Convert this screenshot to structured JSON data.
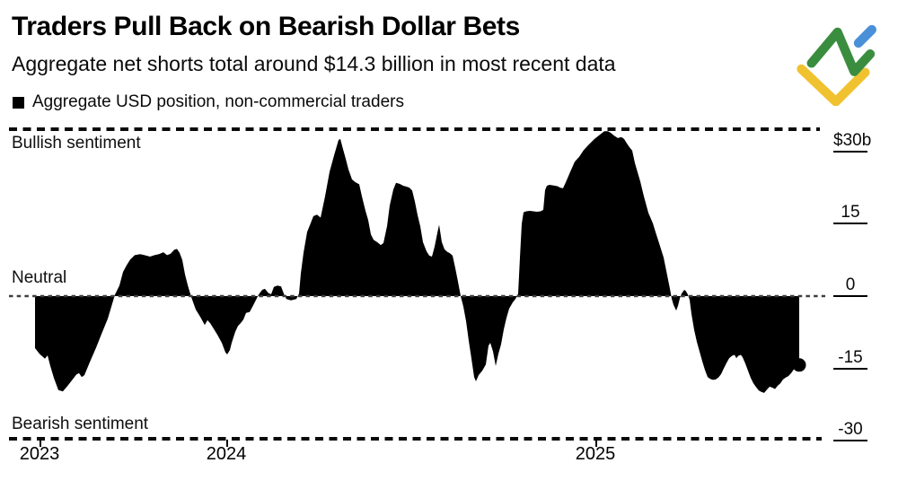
{
  "header": {
    "title": "Traders Pull Back on Bearish Dollar Bets",
    "subtitle": "Aggregate net shorts total around $14.3 billion in most recent data"
  },
  "legend": {
    "label": "Aggregate USD position, non-commercial traders",
    "swatch_color": "#000000"
  },
  "annotations": {
    "bullish": "Bullish sentiment",
    "neutral": "Neutral",
    "bearish": "Bearish sentiment"
  },
  "y_axis": {
    "labels": [
      {
        "text": "$30b",
        "value": 30
      },
      {
        "text": "15",
        "value": 15
      },
      {
        "text": "0",
        "value": 0
      },
      {
        "text": "-15",
        "value": -15
      },
      {
        "text": "-30",
        "value": -30
      }
    ]
  },
  "x_axis": {
    "ticks": [
      {
        "label": "2023",
        "x": 44
      },
      {
        "label": "2024",
        "x": 252
      },
      {
        "label": "2025",
        "x": 663
      }
    ]
  },
  "logo": {
    "name": "litefinance-mark",
    "colors": {
      "green": "#3a8d3e",
      "blue": "#4a90d8",
      "yellow": "#f0c230"
    }
  },
  "chart_data": {
    "type": "area",
    "series_name": "Aggregate USD position, non-commercial traders",
    "unit": "USD billions",
    "baseline": 0,
    "ylim": [
      -29.6,
      34.6
    ],
    "y_ticks": [
      30,
      15,
      0,
      -15,
      -30
    ],
    "x_tick_labels": [
      "2023",
      "2024",
      "2025"
    ],
    "grid": "dashed lines at plot top, zero baseline, and plot bottom only",
    "legend_position": "top-left",
    "fill_color": "#000000",
    "last_value": -14.3,
    "last_point_marker": "dot",
    "points_format": "[x_pixel_in_plot(10..905), value_billions]",
    "points": [
      [
        39,
        -10.8
      ],
      [
        44,
        -12.0
      ],
      [
        50,
        -13.0
      ],
      [
        53,
        -12.3
      ],
      [
        56,
        -14.5
      ],
      [
        60,
        -17.0
      ],
      [
        65,
        -19.5
      ],
      [
        70,
        -19.8
      ],
      [
        75,
        -18.7
      ],
      [
        80,
        -17.5
      ],
      [
        85,
        -16.3
      ],
      [
        88,
        -16.0
      ],
      [
        91,
        -16.8
      ],
      [
        94,
        -16.4
      ],
      [
        100,
        -13.7
      ],
      [
        107,
        -10.7
      ],
      [
        113,
        -7.9
      ],
      [
        120,
        -4.7
      ],
      [
        128,
        0.3
      ],
      [
        133,
        2.2
      ],
      [
        137,
        5.0
      ],
      [
        141,
        6.4
      ],
      [
        145,
        7.6
      ],
      [
        150,
        8.5
      ],
      [
        156,
        8.7
      ],
      [
        161,
        8.5
      ],
      [
        167,
        8.2
      ],
      [
        172,
        8.5
      ],
      [
        177,
        8.7
      ],
      [
        182,
        9.1
      ],
      [
        186,
        8.5
      ],
      [
        190,
        8.8
      ],
      [
        194,
        9.6
      ],
      [
        197,
        9.8
      ],
      [
        200,
        9.0
      ],
      [
        203,
        7.5
      ],
      [
        206,
        4.5
      ],
      [
        209,
        2.3
      ],
      [
        213,
        -0.2
      ],
      [
        218,
        -2.8
      ],
      [
        223,
        -4.3
      ],
      [
        228,
        -6.0
      ],
      [
        231,
        -5.0
      ],
      [
        234,
        -5.6
      ],
      [
        237,
        -6.5
      ],
      [
        242,
        -8.0
      ],
      [
        247,
        -9.7
      ],
      [
        251,
        -11.7
      ],
      [
        253,
        -12.1
      ],
      [
        256,
        -11.2
      ],
      [
        258,
        -9.7
      ],
      [
        262,
        -7.4
      ],
      [
        265,
        -6.2
      ],
      [
        268,
        -5.6
      ],
      [
        271,
        -4.9
      ],
      [
        274,
        -3.5
      ],
      [
        278,
        -3.3
      ],
      [
        282,
        -1.9
      ],
      [
        288,
        0.3
      ],
      [
        292,
        1.3
      ],
      [
        295,
        1.5
      ],
      [
        299,
        0.6
      ],
      [
        302,
        0.4
      ],
      [
        305,
        1.9
      ],
      [
        309,
        2.2
      ],
      [
        313,
        2.0
      ],
      [
        316,
        0.5
      ],
      [
        319,
        -0.6
      ],
      [
        324,
        -0.9
      ],
      [
        330,
        -0.6
      ],
      [
        333,
        0.5
      ],
      [
        335,
        4.7
      ],
      [
        338,
        9.0
      ],
      [
        342,
        13.3
      ],
      [
        345,
        14.7
      ],
      [
        349,
        16.6
      ],
      [
        353,
        16.9
      ],
      [
        357,
        16.3
      ],
      [
        362,
        20.7
      ],
      [
        367,
        25.8
      ],
      [
        372,
        29.2
      ],
      [
        377,
        32.4
      ],
      [
        379,
        32.6
      ],
      [
        382,
        30.5
      ],
      [
        385,
        28.5
      ],
      [
        388,
        26.3
      ],
      [
        392,
        24.2
      ],
      [
        396,
        23.6
      ],
      [
        400,
        23.2
      ],
      [
        403,
        20.7
      ],
      [
        407,
        17.7
      ],
      [
        410,
        15.8
      ],
      [
        413,
        12.8
      ],
      [
        416,
        11.7
      ],
      [
        420,
        11.2
      ],
      [
        424,
        10.6
      ],
      [
        427,
        11.0
      ],
      [
        431,
        14.5
      ],
      [
        434,
        18.8
      ],
      [
        438,
        22.1
      ],
      [
        441,
        23.5
      ],
      [
        445,
        23.3
      ],
      [
        449,
        22.9
      ],
      [
        453,
        22.7
      ],
      [
        456,
        22.5
      ],
      [
        459,
        21.9
      ],
      [
        462,
        19.6
      ],
      [
        465,
        16.8
      ],
      [
        468,
        14.5
      ],
      [
        471,
        11.2
      ],
      [
        475,
        9.3
      ],
      [
        478,
        8.4
      ],
      [
        481,
        8.2
      ],
      [
        484,
        10.3
      ],
      [
        487,
        13.1
      ],
      [
        489,
        14.8
      ],
      [
        492,
        11.2
      ],
      [
        495,
        9.7
      ],
      [
        498,
        9.2
      ],
      [
        501,
        8.9
      ],
      [
        504,
        8.4
      ],
      [
        507,
        5.8
      ],
      [
        510,
        3.0
      ],
      [
        513,
        0.0
      ],
      [
        516,
        -2.2
      ],
      [
        519,
        -5.2
      ],
      [
        522,
        -9.3
      ],
      [
        525,
        -13.0
      ],
      [
        528,
        -16.8
      ],
      [
        530,
        -17.7
      ],
      [
        533,
        -16.4
      ],
      [
        537,
        -15.5
      ],
      [
        541,
        -14.2
      ],
      [
        544,
        -10.3
      ],
      [
        546,
        -9.7
      ],
      [
        549,
        -11.5
      ],
      [
        552,
        -14.5
      ],
      [
        555,
        -12.0
      ],
      [
        558,
        -10.0
      ],
      [
        561,
        -6.9
      ],
      [
        564,
        -4.5
      ],
      [
        567,
        -2.6
      ],
      [
        571,
        -1.3
      ],
      [
        574,
        -0.6
      ],
      [
        577,
        0.5
      ],
      [
        579,
        8.0
      ],
      [
        581,
        15.0
      ],
      [
        583,
        17.4
      ],
      [
        586,
        17.6
      ],
      [
        590,
        17.7
      ],
      [
        594,
        17.6
      ],
      [
        598,
        17.5
      ],
      [
        602,
        17.6
      ],
      [
        605,
        17.9
      ],
      [
        607,
        22.0
      ],
      [
        609,
        22.9
      ],
      [
        612,
        23.1
      ],
      [
        615,
        23.0
      ],
      [
        618,
        22.9
      ],
      [
        621,
        22.8
      ],
      [
        624,
        22.5
      ],
      [
        627,
        22.4
      ],
      [
        630,
        23.6
      ],
      [
        633,
        24.9
      ],
      [
        636,
        26.2
      ],
      [
        640,
        27.9
      ],
      [
        645,
        28.9
      ],
      [
        650,
        30.3
      ],
      [
        655,
        31.3
      ],
      [
        662,
        32.6
      ],
      [
        668,
        33.5
      ],
      [
        673,
        34.2
      ],
      [
        677,
        34.2
      ],
      [
        680,
        33.9
      ],
      [
        684,
        33.3
      ],
      [
        688,
        32.8
      ],
      [
        692,
        33.0
      ],
      [
        695,
        32.6
      ],
      [
        698,
        31.7
      ],
      [
        701,
        30.9
      ],
      [
        704,
        30.2
      ],
      [
        707,
        27.6
      ],
      [
        710,
        25.7
      ],
      [
        713,
        23.8
      ],
      [
        717,
        20.7
      ],
      [
        722,
        17.3
      ],
      [
        727,
        15.1
      ],
      [
        731,
        12.7
      ],
      [
        735,
        10.4
      ],
      [
        739,
        8.0
      ],
      [
        743,
        4.3
      ],
      [
        746,
        1.5
      ],
      [
        748,
        -0.5
      ],
      [
        750,
        -1.8
      ],
      [
        753,
        -3.0
      ],
      [
        755,
        -2.0
      ],
      [
        757,
        -0.5
      ],
      [
        759,
        0.5
      ],
      [
        762,
        1.3
      ],
      [
        764,
        1.0
      ],
      [
        766,
        0.3
      ],
      [
        768,
        -0.8
      ],
      [
        770,
        -3.7
      ],
      [
        773,
        -7.0
      ],
      [
        776,
        -9.5
      ],
      [
        779,
        -11.5
      ],
      [
        782,
        -13.5
      ],
      [
        785,
        -15.3
      ],
      [
        788,
        -16.8
      ],
      [
        791,
        -17.2
      ],
      [
        794,
        -17.4
      ],
      [
        797,
        -17.3
      ],
      [
        800,
        -16.9
      ],
      [
        803,
        -16.2
      ],
      [
        806,
        -15.0
      ],
      [
        809,
        -13.9
      ],
      [
        812,
        -12.9
      ],
      [
        815,
        -12.4
      ],
      [
        818,
        -12.2
      ],
      [
        820,
        -12.9
      ],
      [
        822,
        -12.4
      ],
      [
        825,
        -12.2
      ],
      [
        827,
        -12.7
      ],
      [
        830,
        -14.0
      ],
      [
        833,
        -15.5
      ],
      [
        836,
        -17.0
      ],
      [
        839,
        -18.1
      ],
      [
        842,
        -18.9
      ],
      [
        845,
        -19.6
      ],
      [
        848,
        -19.9
      ],
      [
        851,
        -20.1
      ],
      [
        854,
        -19.4
      ],
      [
        857,
        -18.8
      ],
      [
        860,
        -19.0
      ],
      [
        863,
        -19.3
      ],
      [
        866,
        -18.6
      ],
      [
        869,
        -18.1
      ],
      [
        872,
        -17.3
      ],
      [
        875,
        -16.9
      ],
      [
        878,
        -16.6
      ],
      [
        881,
        -16.0
      ],
      [
        884,
        -15.2
      ],
      [
        887,
        -14.6
      ],
      [
        890,
        -14.3
      ]
    ]
  }
}
